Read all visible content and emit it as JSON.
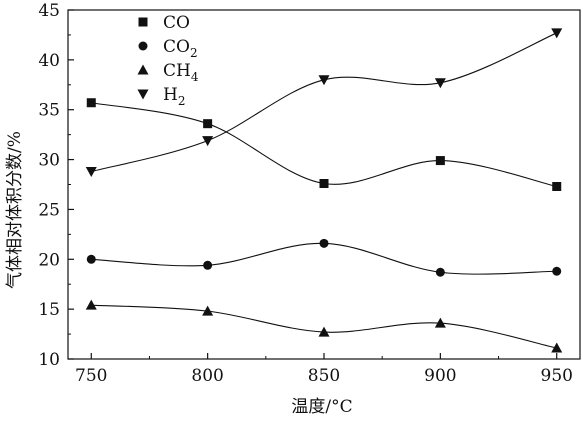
{
  "chart_data": {
    "type": "scatter",
    "title": "",
    "xlabel": "温度/°C",
    "ylabel": "气体相对体积分数/%",
    "xlim": [
      740,
      960
    ],
    "ylim": [
      10,
      45
    ],
    "x_ticks": [
      750,
      800,
      850,
      900,
      950
    ],
    "y_ticks": [
      10,
      15,
      20,
      25,
      30,
      35,
      40,
      45
    ],
    "x_tick_labels": [
      "750",
      "800",
      "850",
      "900",
      "950"
    ],
    "y_tick_labels": [
      "10",
      "15",
      "20",
      "25",
      "30",
      "35",
      "40",
      "45"
    ],
    "grid": false,
    "legend_position": "top-left",
    "x": [
      750,
      800,
      850,
      900,
      950
    ],
    "series": [
      {
        "name": "CO",
        "legend_main": "CO",
        "legend_sub": "",
        "marker": "square",
        "values": [
          35.7,
          33.6,
          27.6,
          29.9,
          27.3
        ]
      },
      {
        "name": "CO2",
        "legend_main": "CO",
        "legend_sub": "2",
        "marker": "circle",
        "values": [
          20.0,
          19.4,
          21.6,
          18.7,
          18.8
        ]
      },
      {
        "name": "CH4",
        "legend_main": "CH",
        "legend_sub": "4",
        "marker": "triangle-up",
        "values": [
          15.4,
          14.8,
          12.7,
          13.6,
          11.1
        ]
      },
      {
        "name": "H2",
        "legend_main": "H",
        "legend_sub": "2",
        "marker": "triangle-down",
        "values": [
          28.8,
          31.9,
          38.0,
          37.7,
          42.7
        ]
      }
    ],
    "colors": {
      "marks": "#111111",
      "axes": "#111111",
      "background": "#ffffff"
    }
  }
}
